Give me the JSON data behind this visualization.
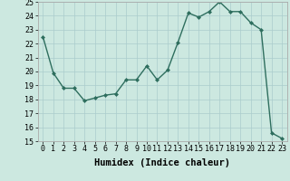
{
  "x": [
    0,
    1,
    2,
    3,
    4,
    5,
    6,
    7,
    8,
    9,
    10,
    11,
    12,
    13,
    14,
    15,
    16,
    17,
    18,
    19,
    20,
    21,
    22,
    23
  ],
  "y": [
    22.5,
    19.9,
    18.8,
    18.8,
    17.9,
    18.1,
    18.3,
    18.4,
    19.4,
    19.4,
    20.4,
    19.4,
    20.1,
    22.1,
    24.2,
    23.9,
    24.3,
    25.0,
    24.3,
    24.3,
    23.5,
    23.0,
    15.6,
    15.2
  ],
  "xlabel": "Humidex (Indice chaleur)",
  "ylim": [
    15,
    25
  ],
  "xlim": [
    -0.5,
    23.5
  ],
  "yticks": [
    15,
    16,
    17,
    18,
    19,
    20,
    21,
    22,
    23,
    24,
    25
  ],
  "xticks": [
    0,
    1,
    2,
    3,
    4,
    5,
    6,
    7,
    8,
    9,
    10,
    11,
    12,
    13,
    14,
    15,
    16,
    17,
    18,
    19,
    20,
    21,
    22,
    23
  ],
  "line_color": "#2e6e5e",
  "marker": "D",
  "marker_size": 2.0,
  "line_width": 1.0,
  "bg_color": "#cce8e0",
  "grid_color": "#aacccc",
  "tick_fontsize": 6.0,
  "xlabel_fontsize": 7.5
}
